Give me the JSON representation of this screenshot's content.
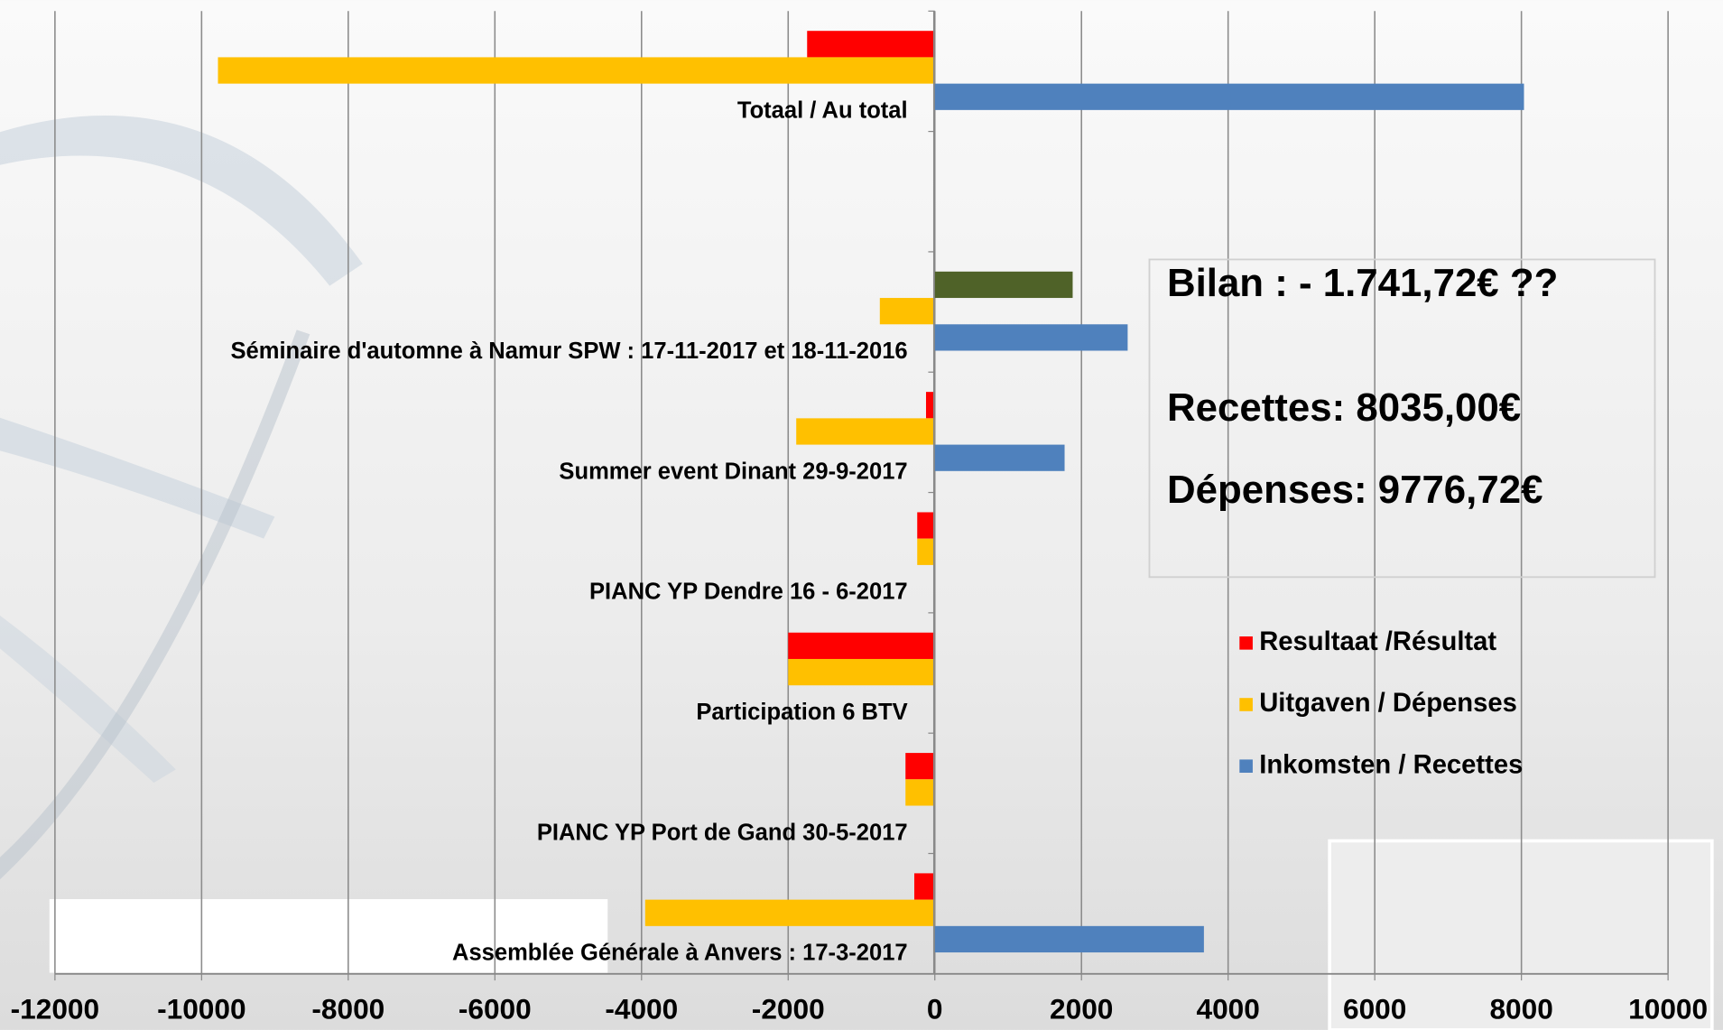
{
  "chart_data": {
    "type": "bar",
    "orientation": "horizontal",
    "categories": [
      "Assemblée Générale à Anvers : 17-3-2017",
      "PIANC YP Port de Gand 30-5-2017",
      "Participation 6 BTV",
      "PIANC YP Dendre 16 - 6-2017",
      "Summer event Dinant 29-9-2017",
      "Séminaire d'automne à Namur SPW : 17-11-2017 et 18-11-2016",
      null,
      "Totaal / Au total"
    ],
    "series": [
      {
        "name": "Resultaat /Résultat",
        "color": "#ff0000",
        "colors": [
          "#ff0000",
          "#ff0000",
          "#ff0000",
          "#ff0000",
          "#ff0000",
          "#4f6228",
          "#ff0000",
          "#ff0000"
        ],
        "values": [
          -280,
          -400,
          -2000,
          -240,
          -120,
          1880,
          null,
          -1741.72
        ]
      },
      {
        "name": "Uitgaven / Dépenses",
        "color": "#ffc000",
        "values": [
          -3950,
          -400,
          -2000,
          -240,
          -1890,
          -750,
          null,
          -9776.72
        ]
      },
      {
        "name": "Inkomsten / Recettes",
        "color": "#4f81bd",
        "values": [
          3670,
          0,
          0,
          0,
          1770,
          2630,
          null,
          8035
        ]
      }
    ],
    "xlim": [
      -12000,
      10000
    ],
    "xticks": [
      -12000,
      -10000,
      -8000,
      -6000,
      -4000,
      -2000,
      0,
      2000,
      4000,
      6000,
      8000,
      10000
    ],
    "grid": true,
    "legend": "right",
    "annotations": [
      "Bilan : - 1.741,72€ ??",
      "Recettes: 8035,00€",
      "Dépenses: 9776,72€"
    ]
  }
}
